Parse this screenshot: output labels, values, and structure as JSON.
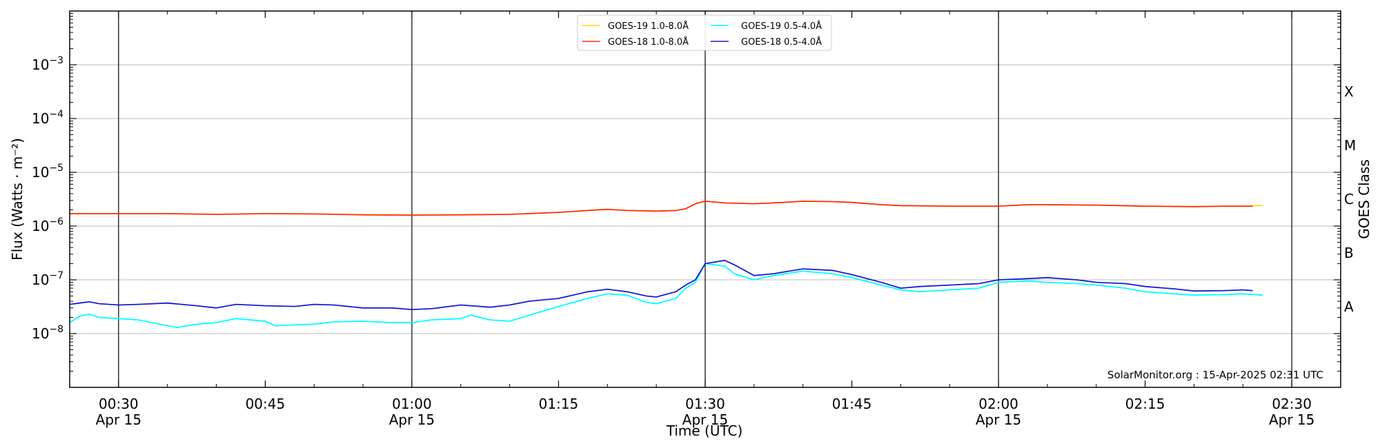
{
  "chart_data": {
    "type": "line",
    "title": "",
    "xlabel": "Time (UTC)",
    "ylabel": "Flux (Watts · m⁻²)",
    "ylabel_right": "GOES Class",
    "xlim": [
      "00:25",
      "02:35"
    ],
    "ylog": true,
    "ylim": [
      1e-09,
      0.01
    ],
    "grid": "horizontal at decades, vertical lines at half hours",
    "legend_position": "top-center",
    "credit": "SolarMonitor.org : 15-Apr-2025 02:31 UTC",
    "x_ticks": [
      {
        "time": "00:30",
        "label": "00:30",
        "sublabel": "Apr 15"
      },
      {
        "time": "00:45",
        "label": "00:45",
        "sublabel": ""
      },
      {
        "time": "01:00",
        "label": "01:00",
        "sublabel": "Apr 15"
      },
      {
        "time": "01:15",
        "label": "01:15",
        "sublabel": ""
      },
      {
        "time": "01:30",
        "label": "01:30",
        "sublabel": "Apr 15"
      },
      {
        "time": "01:45",
        "label": "01:45",
        "sublabel": ""
      },
      {
        "time": "02:00",
        "label": "02:00",
        "sublabel": "Apr 15"
      },
      {
        "time": "02:15",
        "label": "02:15",
        "sublabel": ""
      },
      {
        "time": "02:30",
        "label": "02:30",
        "sublabel": "Apr 15"
      }
    ],
    "vlines": [
      "00:30",
      "01:00",
      "01:30",
      "02:00",
      "02:30"
    ],
    "y_ticks": [
      {
        "value": 1e-08,
        "exp": "−8"
      },
      {
        "value": 1e-07,
        "exp": "−7"
      },
      {
        "value": 1e-06,
        "exp": "−6"
      },
      {
        "value": 1e-05,
        "exp": "−5"
      },
      {
        "value": 0.0001,
        "exp": "−4"
      },
      {
        "value": 0.001,
        "exp": "−3"
      }
    ],
    "hgrid": [
      1e-08,
      1e-07,
      1e-06,
      1e-05,
      0.0001,
      0.001
    ],
    "goes_classes": [
      {
        "label": "A",
        "value": 3.16e-08
      },
      {
        "label": "B",
        "value": 3.16e-07
      },
      {
        "label": "C",
        "value": 3.16e-06
      },
      {
        "label": "M",
        "value": 3.16e-05
      },
      {
        "label": "X",
        "value": 0.000316
      }
    ],
    "series": [
      {
        "name": "GOES-19 1.0-8.0Å",
        "color": "#ffd700",
        "x": [
          "02:26",
          "02:27"
        ],
        "y": [
          2.4e-06,
          2.4e-06
        ]
      },
      {
        "name": "GOES-18 1.0-8.0Å",
        "color": "#ff2a00",
        "x": [
          "00:25",
          "00:30",
          "00:35",
          "00:40",
          "00:45",
          "00:50",
          "00:55",
          "01:00",
          "01:05",
          "01:10",
          "01:15",
          "01:18",
          "01:20",
          "01:22",
          "01:25",
          "01:27",
          "01:28",
          "01:29",
          "01:30",
          "01:32",
          "01:35",
          "01:38",
          "01:40",
          "01:43",
          "01:45",
          "01:48",
          "01:50",
          "01:55",
          "02:00",
          "02:03",
          "02:05",
          "02:10",
          "02:15",
          "02:20",
          "02:23",
          "02:26"
        ],
        "y": [
          1.7e-06,
          1.7e-06,
          1.7e-06,
          1.65e-06,
          1.7e-06,
          1.68e-06,
          1.62e-06,
          1.6e-06,
          1.62e-06,
          1.65e-06,
          1.8e-06,
          1.95e-06,
          2.05e-06,
          1.95e-06,
          1.9e-06,
          1.95e-06,
          2.1e-06,
          2.6e-06,
          2.9e-06,
          2.7e-06,
          2.6e-06,
          2.75e-06,
          2.9e-06,
          2.85e-06,
          2.75e-06,
          2.5e-06,
          2.4e-06,
          2.35e-06,
          2.35e-06,
          2.5e-06,
          2.5e-06,
          2.45e-06,
          2.35e-06,
          2.3e-06,
          2.35e-06,
          2.35e-06
        ]
      },
      {
        "name": "GOES-19 0.5-4.0Å",
        "color": "#00ffff",
        "x": [
          "00:25",
          "00:26",
          "00:27",
          "00:28",
          "00:30",
          "00:32",
          "00:35",
          "00:36",
          "00:38",
          "00:40",
          "00:42",
          "00:45",
          "00:46",
          "00:48",
          "00:50",
          "00:52",
          "00:55",
          "00:58",
          "01:00",
          "01:02",
          "01:05",
          "01:06",
          "01:08",
          "01:10",
          "01:12",
          "01:15",
          "01:18",
          "01:20",
          "01:22",
          "01:24",
          "01:25",
          "01:27",
          "01:28",
          "01:29",
          "01:30",
          "01:32",
          "01:33",
          "01:35",
          "01:37",
          "01:40",
          "01:43",
          "01:45",
          "01:48",
          "01:50",
          "01:52",
          "01:55",
          "01:58",
          "02:00",
          "02:03",
          "02:05",
          "02:08",
          "02:10",
          "02:13",
          "02:15",
          "02:18",
          "02:20",
          "02:23",
          "02:25",
          "02:27"
        ],
        "y": [
          1.6e-08,
          2.1e-08,
          2.3e-08,
          2e-08,
          1.9e-08,
          1.8e-08,
          1.4e-08,
          1.3e-08,
          1.5e-08,
          1.6e-08,
          1.9e-08,
          1.7e-08,
          1.4e-08,
          1.45e-08,
          1.5e-08,
          1.65e-08,
          1.7e-08,
          1.6e-08,
          1.6e-08,
          1.8e-08,
          1.9e-08,
          2.2e-08,
          1.8e-08,
          1.7e-08,
          2.2e-08,
          3.2e-08,
          4.5e-08,
          5.5e-08,
          5.2e-08,
          3.8e-08,
          3.6e-08,
          4.5e-08,
          7e-08,
          9e-08,
          2e-07,
          1.8e-07,
          1.3e-07,
          1e-07,
          1.2e-07,
          1.45e-07,
          1.3e-07,
          1.1e-07,
          8e-08,
          6.5e-08,
          6e-08,
          6.5e-08,
          7e-08,
          9e-08,
          9.5e-08,
          9e-08,
          8.5e-08,
          8e-08,
          7e-08,
          6e-08,
          5.5e-08,
          5.2e-08,
          5.3e-08,
          5.5e-08,
          5.2e-08
        ]
      },
      {
        "name": "GOES-18 0.5-4.0Å",
        "color": "#1a1ad6",
        "x": [
          "00:25",
          "00:26",
          "00:27",
          "00:28",
          "00:30",
          "00:32",
          "00:35",
          "00:38",
          "00:40",
          "00:42",
          "00:45",
          "00:48",
          "00:50",
          "00:52",
          "00:55",
          "00:58",
          "01:00",
          "01:02",
          "01:05",
          "01:08",
          "01:10",
          "01:12",
          "01:15",
          "01:18",
          "01:20",
          "01:22",
          "01:24",
          "01:25",
          "01:27",
          "01:28",
          "01:29",
          "01:30",
          "01:32",
          "01:33",
          "01:35",
          "01:37",
          "01:40",
          "01:43",
          "01:45",
          "01:48",
          "01:50",
          "01:52",
          "01:55",
          "01:58",
          "02:00",
          "02:03",
          "02:05",
          "02:08",
          "02:10",
          "02:13",
          "02:15",
          "02:18",
          "02:20",
          "02:23",
          "02:25",
          "02:26"
        ],
        "y": [
          3.5e-08,
          3.7e-08,
          3.9e-08,
          3.6e-08,
          3.4e-08,
          3.5e-08,
          3.7e-08,
          3.3e-08,
          3e-08,
          3.5e-08,
          3.3e-08,
          3.2e-08,
          3.5e-08,
          3.4e-08,
          3e-08,
          3e-08,
          2.8e-08,
          2.9e-08,
          3.4e-08,
          3.1e-08,
          3.4e-08,
          4e-08,
          4.5e-08,
          6e-08,
          6.7e-08,
          6e-08,
          5e-08,
          4.8e-08,
          6e-08,
          8e-08,
          1e-07,
          2e-07,
          2.3e-07,
          1.9e-07,
          1.2e-07,
          1.3e-07,
          1.6e-07,
          1.5e-07,
          1.25e-07,
          9e-08,
          7e-08,
          7.5e-08,
          8e-08,
          8.5e-08,
          1e-07,
          1.05e-07,
          1.1e-07,
          1e-07,
          9e-08,
          8.5e-08,
          7.5e-08,
          6.8e-08,
          6.2e-08,
          6.3e-08,
          6.5e-08,
          6.3e-08
        ]
      }
    ]
  }
}
